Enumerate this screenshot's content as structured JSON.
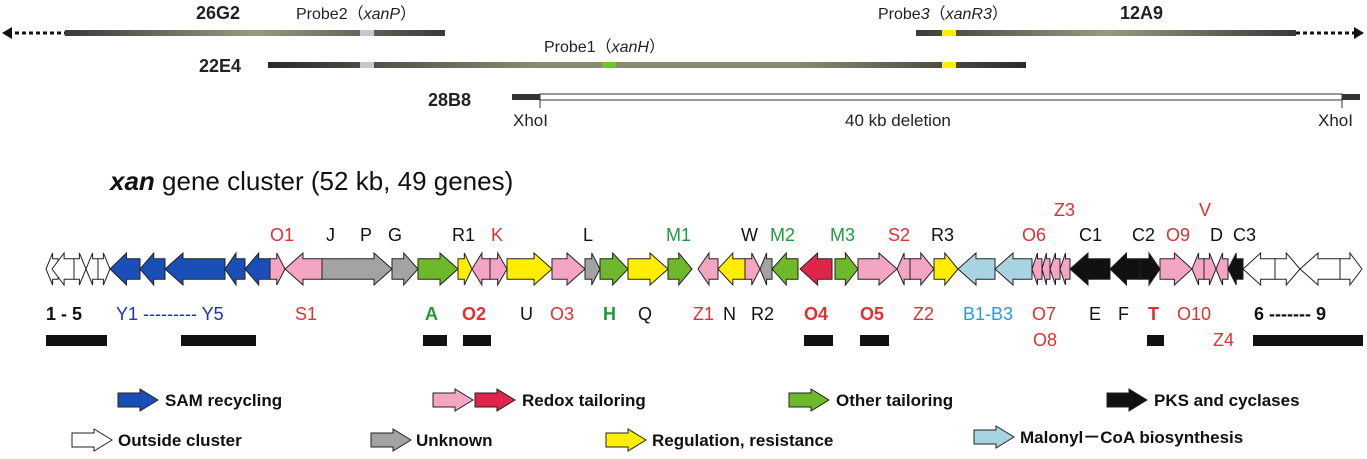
{
  "cosmids": {
    "c26G2": "26G2",
    "c22E4": "22E4",
    "c28B8": "28B8",
    "c12A9": "12A9"
  },
  "probes": {
    "probe2_prefix": "Probe2（",
    "probe2_gene": "xanP",
    "probe2_suffix": "）",
    "probe1_prefix": "Probe1（",
    "probe1_gene": "xanH",
    "probe1_suffix": "）",
    "probe3_prefix": "Probe",
    "probe3_num": "3",
    "probe3_open": "（",
    "probe3_gene": "xanR3",
    "probe3_suffix": "）"
  },
  "deletion": {
    "left_site": "XhoI",
    "right_site": "XhoI",
    "label": "40 kb deletion"
  },
  "title": {
    "bold": "xan",
    "rest": " gene cluster (52 kb, 49 genes)"
  },
  "colors": {
    "sam": "#1a4fb8",
    "redox_light": "#f4a5c4",
    "redox_dark": "#e0254a",
    "other": "#6fb82b",
    "pks": "#111111",
    "outside": "#ffffff",
    "unknown": "#a3a3a3",
    "regulation": "#ffee00",
    "malonyl": "#a8d4e2",
    "probe_green": "#6fc52c",
    "probe_yellow": "#ffee00",
    "probe_grey": "#c8c8c8"
  },
  "top_labels": [
    {
      "text": "O1",
      "color": "#e03030"
    },
    {
      "text": "J",
      "color": "#111111"
    },
    {
      "text": "P",
      "color": "#111111"
    },
    {
      "text": "G",
      "color": "#111111"
    },
    {
      "text": "R1",
      "color": "#111111"
    },
    {
      "text": "K",
      "color": "#e03030"
    },
    {
      "text": "L",
      "color": "#111111"
    },
    {
      "text": "M1",
      "color": "#1e9a3a"
    },
    {
      "text": "W",
      "color": "#111111"
    },
    {
      "text": "M2",
      "color": "#1e9a3a"
    },
    {
      "text": "M3",
      "color": "#1e9a3a"
    },
    {
      "text": "S2",
      "color": "#e03030"
    },
    {
      "text": "R3",
      "color": "#111111"
    },
    {
      "text": "O6",
      "color": "#e03030"
    },
    {
      "text": "Z3",
      "color": "#e03030"
    },
    {
      "text": "C1",
      "color": "#111111"
    },
    {
      "text": "C2",
      "color": "#111111"
    },
    {
      "text": "O9",
      "color": "#e03030"
    },
    {
      "text": "V",
      "color": "#e03030"
    },
    {
      "text": "D",
      "color": "#111111"
    },
    {
      "text": "C3",
      "color": "#111111"
    }
  ],
  "bottom_labels": [
    {
      "text": "1  -  5",
      "color": "#111111",
      "bold": true
    },
    {
      "text": "Y1 --------- Y5",
      "color": "#1a35b0",
      "bold": false
    },
    {
      "text": "S1",
      "color": "#e03030",
      "bold": false
    },
    {
      "text": "A",
      "color": "#1e9a3a",
      "bold": true
    },
    {
      "text": "O2",
      "color": "#e03030",
      "bold": true
    },
    {
      "text": "U",
      "color": "#111111",
      "bold": false
    },
    {
      "text": "O3",
      "color": "#e03030",
      "bold": false
    },
    {
      "text": "H",
      "color": "#1e9a3a",
      "bold": true
    },
    {
      "text": "Q",
      "color": "#111111",
      "bold": false
    },
    {
      "text": "Z1",
      "color": "#e03030",
      "bold": false
    },
    {
      "text": "N",
      "color": "#111111",
      "bold": false
    },
    {
      "text": "R2",
      "color": "#111111",
      "bold": false
    },
    {
      "text": "O4",
      "color": "#e03030",
      "bold": true
    },
    {
      "text": "O5",
      "color": "#e03030",
      "bold": true
    },
    {
      "text": "Z2",
      "color": "#e03030",
      "bold": false
    },
    {
      "text": "B1-B3",
      "color": "#2a9ad8",
      "bold": false
    },
    {
      "text": "O7",
      "color": "#e03030",
      "bold": false
    },
    {
      "text": "O8",
      "color": "#e03030",
      "bold": false
    },
    {
      "text": "E",
      "color": "#111111",
      "bold": false
    },
    {
      "text": "F",
      "color": "#111111",
      "bold": false
    },
    {
      "text": "T",
      "color": "#e03030",
      "bold": true
    },
    {
      "text": "O10",
      "color": "#e03030",
      "bold": false
    },
    {
      "text": "Z4",
      "color": "#e03030",
      "bold": false
    },
    {
      "text": "6 ------- 9",
      "color": "#111111",
      "bold": true
    }
  ],
  "legend": [
    {
      "key": "sam",
      "label": "SAM recycling"
    },
    {
      "key": "redox",
      "label": "Redox tailoring"
    },
    {
      "key": "other",
      "label": "Other tailoring"
    },
    {
      "key": "pks",
      "label": "PKS and cyclases"
    },
    {
      "key": "outside",
      "label": "Outside cluster"
    },
    {
      "key": "unknown",
      "label": "Unknown"
    },
    {
      "key": "regulation",
      "label": "Regulation, resistance"
    },
    {
      "key": "malonyl",
      "label": "Malonyl－CoA biosynthesis"
    }
  ]
}
